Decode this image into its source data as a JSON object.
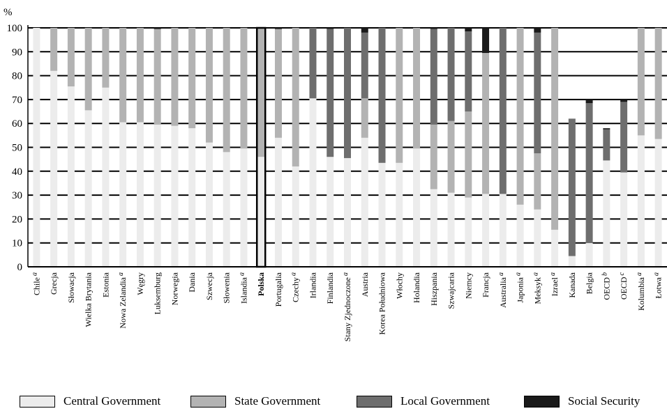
{
  "chart_data": {
    "type": "bar",
    "stacked": true,
    "ylabel": "%",
    "ylim": [
      0,
      100
    ],
    "yticks": [
      0,
      10,
      20,
      30,
      40,
      50,
      60,
      70,
      80,
      90,
      100
    ],
    "grid": true,
    "legend_position": "bottom",
    "categories": [
      {
        "name": "Chile",
        "sup": "a",
        "bold": false
      },
      {
        "name": "Grecja",
        "sup": "",
        "bold": false
      },
      {
        "name": "Słowacja",
        "sup": "",
        "bold": false
      },
      {
        "name": "Wielka Brytania",
        "sup": "",
        "bold": false
      },
      {
        "name": "Estonia",
        "sup": "",
        "bold": false
      },
      {
        "name": "Nowa Zelandia",
        "sup": "a",
        "bold": false
      },
      {
        "name": "Węgry",
        "sup": "",
        "bold": false
      },
      {
        "name": "Luksemburg",
        "sup": "",
        "bold": false
      },
      {
        "name": "Norwegia",
        "sup": "",
        "bold": false
      },
      {
        "name": "Dania",
        "sup": "",
        "bold": false
      },
      {
        "name": "Szwecja",
        "sup": "",
        "bold": false
      },
      {
        "name": "Słowenia",
        "sup": "",
        "bold": false
      },
      {
        "name": "Islandia",
        "sup": "a",
        "bold": false
      },
      {
        "name": "Polska",
        "sup": "",
        "bold": true
      },
      {
        "name": "Portugalia",
        "sup": "",
        "bold": false
      },
      {
        "name": "Czechy",
        "sup": "a",
        "bold": false
      },
      {
        "name": "Irlandia",
        "sup": "",
        "bold": false
      },
      {
        "name": "Finlandia",
        "sup": "",
        "bold": false
      },
      {
        "name": "Stany Zjednoczone",
        "sup": "a",
        "bold": false
      },
      {
        "name": "Austria",
        "sup": "",
        "bold": false
      },
      {
        "name": "Korea Południowa",
        "sup": "",
        "bold": false
      },
      {
        "name": "Włochy",
        "sup": "",
        "bold": false
      },
      {
        "name": "Holandia",
        "sup": "",
        "bold": false
      },
      {
        "name": "Hiszpania",
        "sup": "",
        "bold": false
      },
      {
        "name": "Szwajcaria",
        "sup": "",
        "bold": false
      },
      {
        "name": "Niemcy",
        "sup": "",
        "bold": false
      },
      {
        "name": "Francja",
        "sup": "",
        "bold": false
      },
      {
        "name": "Australia",
        "sup": "a",
        "bold": false
      },
      {
        "name": "Japonia",
        "sup": "a",
        "bold": false
      },
      {
        "name": "Meksyk",
        "sup": "a",
        "bold": false
      },
      {
        "name": "Izrael",
        "sup": "a",
        "bold": false
      },
      {
        "name": "Kanada",
        "sup": "",
        "bold": false
      },
      {
        "name": "Belgia",
        "sup": "",
        "bold": false
      },
      {
        "name": "OECD",
        "sup": "b",
        "bold": false
      },
      {
        "name": "OECD",
        "sup": "c",
        "bold": false
      },
      {
        "name": "Kolumbia",
        "sup": "a",
        "bold": false
      },
      {
        "name": "Łotwa",
        "sup": "a",
        "bold": false
      }
    ],
    "series": [
      {
        "name": "Central Government",
        "color": "#ececec",
        "values": [
          100,
          82,
          75.5,
          65.5,
          75,
          60.5,
          60.5,
          59.5,
          59,
          58,
          52,
          48,
          49.5,
          46,
          54,
          42,
          70.5,
          46,
          45.5,
          54,
          43.5,
          43.5,
          49.5,
          32.5,
          31,
          29,
          30.5,
          30.5,
          26,
          24,
          15.5,
          4.5,
          10,
          44.5,
          39.5,
          55,
          53.5
        ]
      },
      {
        "name": "State Government",
        "color": "#b3b3b3",
        "values": [
          0,
          18,
          24.5,
          34.5,
          25,
          39.5,
          39.5,
          40,
          41,
          42,
          48,
          52,
          50.5,
          54,
          45.5,
          58,
          0,
          0,
          0,
          16.5,
          0,
          56.5,
          50.5,
          27,
          30,
          36,
          59,
          0,
          74,
          23.5,
          84.5,
          0,
          0,
          0,
          0,
          45,
          46.5
        ]
      },
      {
        "name": "Local Government",
        "color": "#6e6e6e",
        "values": [
          0,
          0,
          0,
          0,
          0,
          0,
          0,
          0,
          0,
          0,
          0,
          0,
          0,
          0,
          0,
          0,
          29.5,
          53.5,
          54.5,
          27.5,
          56.5,
          0,
          0,
          40,
          39,
          33.5,
          0,
          69.5,
          0,
          50.5,
          0,
          57.5,
          58.5,
          13,
          29.5,
          0,
          0
        ]
      },
      {
        "name": "Social Security",
        "color": "#1a1a1a",
        "values": [
          0,
          0,
          0,
          0,
          0,
          0,
          0,
          0.5,
          0,
          0,
          0,
          0,
          0,
          0,
          0.5,
          0,
          0,
          0.5,
          0,
          2,
          0,
          0,
          0,
          0.5,
          0,
          1.5,
          10.5,
          0,
          0,
          2,
          0,
          0,
          1.5,
          0.5,
          1,
          0,
          0
        ]
      }
    ]
  }
}
